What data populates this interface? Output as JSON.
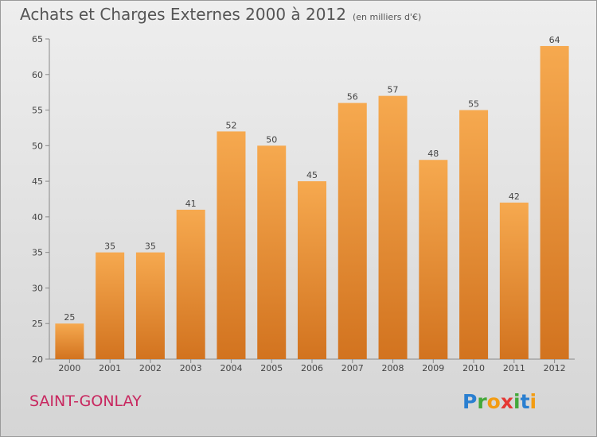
{
  "title": "Achats et Charges Externes 2000 à 2012",
  "subtitle": "(en milliers d'€)",
  "commune": "SAINT-GONLAY",
  "logo_text": "Proxiti",
  "colors": {
    "bar_light": "#f6a94f",
    "bar_dark": "#d2731f",
    "commune": "#c8275f",
    "axis": "#888888"
  },
  "chart_data": {
    "type": "bar",
    "categories": [
      "2000",
      "2001",
      "2002",
      "2003",
      "2004",
      "2005",
      "2006",
      "2007",
      "2008",
      "2009",
      "2010",
      "2011",
      "2012"
    ],
    "values": [
      25,
      35,
      35,
      41,
      52,
      50,
      45,
      56,
      57,
      48,
      55,
      42,
      64
    ],
    "ylim": [
      20,
      65
    ],
    "yticks": [
      20,
      25,
      30,
      35,
      40,
      45,
      50,
      55,
      60,
      65
    ],
    "title": "Achats et Charges Externes 2000 à 2012",
    "xlabel": "",
    "ylabel": "",
    "grid": false,
    "data_labels": true
  }
}
